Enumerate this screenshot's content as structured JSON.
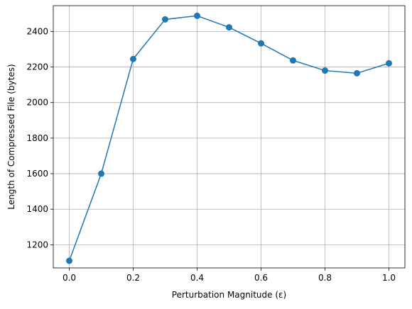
{
  "chart_data": {
    "type": "line",
    "title": "",
    "xlabel": "Perturbation Magnitude (ε)",
    "ylabel": "Length of Compressed File (bytes)",
    "xlim": [
      -0.05,
      1.05
    ],
    "ylim": [
      1070,
      2545
    ],
    "xticks": [
      0.0,
      0.2,
      0.4,
      0.6,
      0.8,
      1.0
    ],
    "xtick_labels": [
      "0.0",
      "0.2",
      "0.4",
      "0.6",
      "0.8",
      "1.0"
    ],
    "yticks": [
      1200,
      1400,
      1600,
      1800,
      2000,
      2200,
      2400
    ],
    "ytick_labels": [
      "1200",
      "1400",
      "1600",
      "1800",
      "2000",
      "2200",
      "2400"
    ],
    "grid": true,
    "legend": "none",
    "series": [
      {
        "color": "#1f77b4",
        "marker": "circle",
        "x": [
          0.0,
          0.1,
          0.2,
          0.3,
          0.4,
          0.5,
          0.6,
          0.7,
          0.8,
          0.9,
          1.0
        ],
        "y": [
          1110,
          1600,
          2245,
          2468,
          2488,
          2423,
          2333,
          2237,
          2180,
          2165,
          2221
        ]
      }
    ]
  }
}
